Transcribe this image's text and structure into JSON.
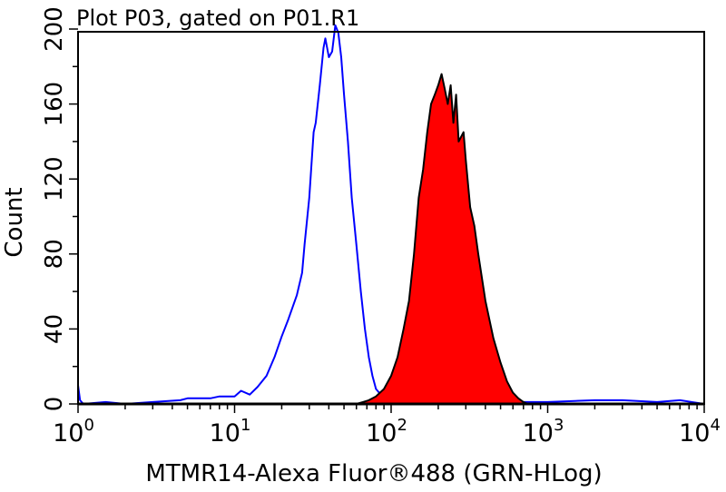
{
  "chart_data": {
    "type": "area",
    "title": "Plot P03, gated on P01.R1",
    "xlabel": "MTMR14-Alexa Fluor®488 (GRN-HLog)",
    "ylabel": "Count",
    "x_scale": "log",
    "xlim": [
      1,
      10000
    ],
    "ylim": [
      0,
      200
    ],
    "x_ticks": [
      {
        "base": "10",
        "exp": "0"
      },
      {
        "base": "10",
        "exp": "1"
      },
      {
        "base": "10",
        "exp": "2"
      },
      {
        "base": "10",
        "exp": "3"
      },
      {
        "base": "10",
        "exp": "4"
      }
    ],
    "y_ticks": [
      "0",
      "40",
      "80",
      "120",
      "160",
      "200"
    ],
    "grid": false,
    "series": [
      {
        "style": "line",
        "color": "#0000ff",
        "x": [
          1,
          1.03,
          1.08,
          1.5,
          2,
          3,
          4.5,
          5,
          7,
          8,
          10,
          11,
          12.5,
          14,
          16,
          18,
          20,
          22,
          25,
          27,
          28,
          30,
          32,
          33,
          35,
          37,
          38,
          40,
          42,
          44,
          46,
          48,
          50,
          53,
          56,
          60,
          64,
          68,
          72,
          76,
          80,
          90,
          100,
          150,
          200,
          500,
          1000,
          2000,
          3000,
          5000,
          7000,
          10000
        ],
        "y": [
          10,
          2,
          0,
          1,
          0,
          1,
          2,
          3,
          3,
          4,
          4,
          7,
          5,
          9,
          15,
          25,
          36,
          45,
          58,
          70,
          85,
          110,
          145,
          150,
          170,
          190,
          195,
          185,
          188,
          202,
          198,
          185,
          165,
          140,
          110,
          85,
          60,
          40,
          25,
          15,
          8,
          3,
          1,
          1,
          0,
          1,
          1,
          2,
          2,
          1,
          2,
          0
        ]
      },
      {
        "style": "filled",
        "color": "#ff0000",
        "outline": "#000000",
        "x": [
          60,
          66,
          72,
          80,
          90,
          100,
          110,
          120,
          130,
          140,
          150,
          160,
          170,
          180,
          190,
          200,
          210,
          220,
          230,
          240,
          250,
          260,
          270,
          290,
          300,
          320,
          340,
          360,
          400,
          450,
          500,
          550,
          600,
          650,
          700,
          750
        ],
        "y": [
          0,
          1,
          2,
          4,
          8,
          15,
          25,
          40,
          55,
          80,
          110,
          125,
          145,
          160,
          165,
          170,
          176,
          168,
          160,
          170,
          150,
          165,
          140,
          145,
          130,
          105,
          95,
          80,
          55,
          35,
          22,
          12,
          6,
          3,
          1,
          0
        ]
      }
    ]
  }
}
